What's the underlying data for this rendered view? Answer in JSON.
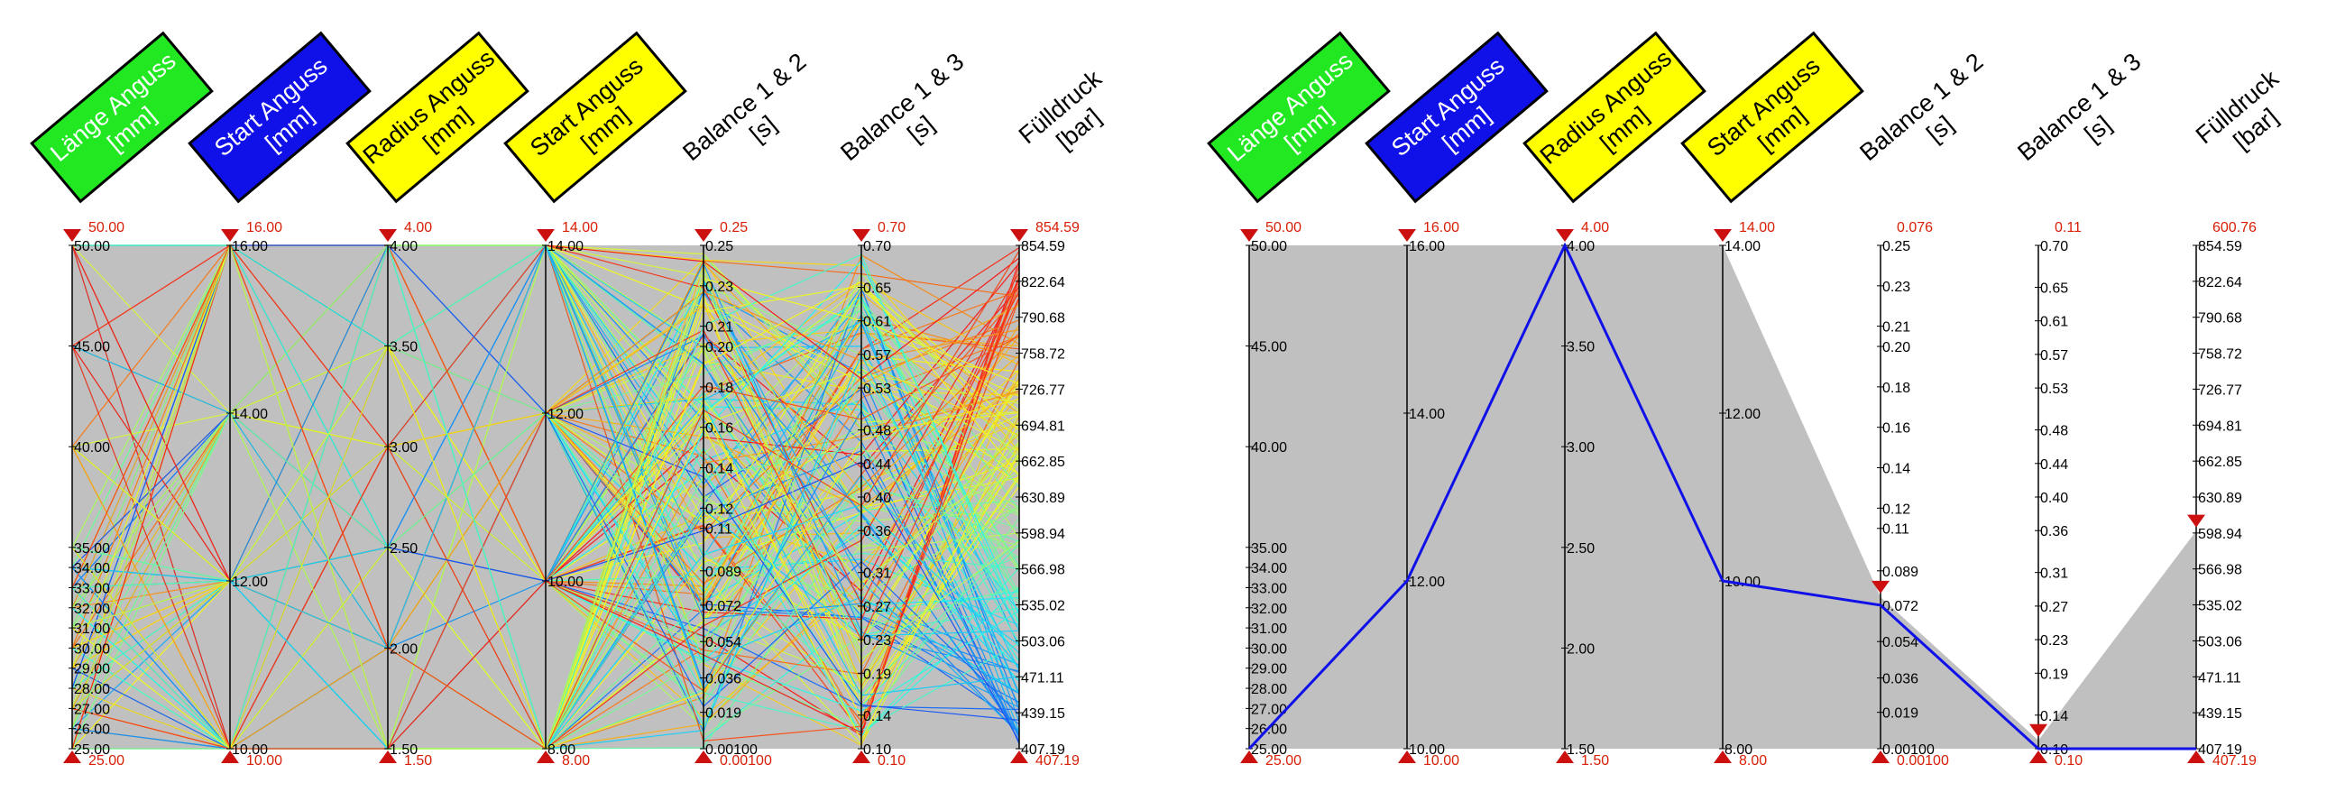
{
  "chart_data": [
    {
      "type": "parallel-coordinates",
      "title": "",
      "axes": [
        {
          "label": [
            "Länge Anguss",
            "[mm]"
          ],
          "box_color": "#22e822",
          "text_color": "#ffffff",
          "max_label": "50.00",
          "min_label": "25.00",
          "min": 25,
          "max": 50,
          "ticks": [
            "25.00",
            "26.00",
            "27.00",
            "28.00",
            "29.00",
            "30.00",
            "31.00",
            "32.00",
            "33.00",
            "34.00",
            "35.00",
            "40.00",
            "45.00",
            "50.00"
          ]
        },
        {
          "label": [
            "Start Anguss",
            "[mm]"
          ],
          "box_color": "#1010e8",
          "text_color": "#ffffff",
          "max_label": "16.00",
          "min_label": "10.00",
          "min": 10,
          "max": 16,
          "ticks": [
            "10.00",
            "12.00",
            "14.00",
            "16.00"
          ]
        },
        {
          "label": [
            "Radius Anguss",
            "[mm]"
          ],
          "box_color": "#ffff00",
          "text_color": "#000000",
          "max_label": "4.00",
          "min_label": "1.50",
          "min": 1.5,
          "max": 4,
          "ticks": [
            "1.50",
            "2.00",
            "2.50",
            "3.00",
            "3.50",
            "4.00"
          ]
        },
        {
          "label": [
            "Start Anguss",
            "[mm]"
          ],
          "box_color": "#ffff00",
          "text_color": "#000000",
          "max_label": "14.00",
          "min_label": "8.00",
          "min": 8,
          "max": 14,
          "ticks": [
            "8.00",
            "10.00",
            "12.00",
            "14.00"
          ]
        },
        {
          "label": [
            "Balance 1 & 2",
            "[s]"
          ],
          "box_color": "",
          "text_color": "#000000",
          "max_label": "0.25",
          "min_label": "0.00100",
          "min": 0.001,
          "max": 0.25,
          "ticks": [
            "0.00100",
            "0.019",
            "0.036",
            "0.054",
            "0.072",
            "0.089",
            "0.11",
            "0.12",
            "0.14",
            "0.16",
            "0.18",
            "0.20",
            "0.21",
            "0.23",
            "0.25"
          ]
        },
        {
          "label": [
            "Balance 1 & 3",
            "[s]"
          ],
          "box_color": "",
          "text_color": "#000000",
          "max_label": "0.70",
          "min_label": "0.10",
          "min": 0.1,
          "max": 0.7,
          "ticks": [
            "0.10",
            "0.14",
            "0.19",
            "0.23",
            "0.27",
            "0.31",
            "0.36",
            "0.40",
            "0.44",
            "0.48",
            "0.53",
            "0.57",
            "0.61",
            "0.65",
            "0.70"
          ]
        },
        {
          "label": [
            "Fülldruck",
            "[bar]"
          ],
          "box_color": "",
          "text_color": "#000000",
          "max_label": "854.59",
          "min_label": "407.19",
          "min": 407.19,
          "max": 854.59,
          "ticks": [
            "407.19",
            "439.15",
            "471.11",
            "503.06",
            "535.02",
            "566.98",
            "598.94",
            "630.89",
            "662.85",
            "694.81",
            "726.77",
            "758.72",
            "790.68",
            "822.64",
            "854.59"
          ]
        }
      ],
      "filter": "none",
      "line_colormap": "jet"
    },
    {
      "type": "parallel-coordinates",
      "title": "",
      "axes": [
        {
          "label": [
            "Länge Anguss",
            "[mm]"
          ],
          "box_color": "#22e822",
          "text_color": "#ffffff",
          "max_label": "50.00",
          "min_label": "25.00",
          "min": 25,
          "max": 50,
          "ticks": [
            "25.00",
            "26.00",
            "27.00",
            "28.00",
            "29.00",
            "30.00",
            "31.00",
            "32.00",
            "33.00",
            "34.00",
            "35.00",
            "40.00",
            "45.00",
            "50.00"
          ]
        },
        {
          "label": [
            "Start Anguss",
            "[mm]"
          ],
          "box_color": "#1010e8",
          "text_color": "#ffffff",
          "max_label": "16.00",
          "min_label": "10.00",
          "min": 10,
          "max": 16,
          "ticks": [
            "10.00",
            "12.00",
            "14.00",
            "16.00"
          ]
        },
        {
          "label": [
            "Radius Anguss",
            "[mm]"
          ],
          "box_color": "#ffff00",
          "text_color": "#000000",
          "max_label": "4.00",
          "min_label": "1.50",
          "min": 1.5,
          "max": 4,
          "ticks": [
            "1.50",
            "2.00",
            "2.50",
            "3.00",
            "3.50",
            "4.00"
          ]
        },
        {
          "label": [
            "Start Anguss",
            "[mm]"
          ],
          "box_color": "#ffff00",
          "text_color": "#000000",
          "max_label": "14.00",
          "min_label": "8.00",
          "min": 8,
          "max": 14,
          "ticks": [
            "8.00",
            "10.00",
            "12.00",
            "14.00"
          ]
        },
        {
          "label": [
            "Balance 1 & 2",
            "[s]"
          ],
          "box_color": "",
          "text_color": "#000000",
          "max_label": "0.076",
          "min_label": "0.00100",
          "min": 0.001,
          "max": 0.25,
          "ticks": [
            "0.00100",
            "0.019",
            "0.036",
            "0.054",
            "0.072",
            "0.089",
            "0.11",
            "0.12",
            "0.14",
            "0.16",
            "0.18",
            "0.20",
            "0.21",
            "0.23",
            "0.25"
          ]
        },
        {
          "label": [
            "Balance 1 & 3",
            "[s]"
          ],
          "box_color": "",
          "text_color": "#000000",
          "max_label": "0.11",
          "min_label": "0.10",
          "min": 0.1,
          "max": 0.7,
          "ticks": [
            "0.10",
            "0.14",
            "0.19",
            "0.23",
            "0.27",
            "0.31",
            "0.36",
            "0.40",
            "0.44",
            "0.48",
            "0.53",
            "0.57",
            "0.61",
            "0.65",
            "0.70"
          ]
        },
        {
          "label": [
            "Fülldruck",
            "[bar]"
          ],
          "box_color": "",
          "text_color": "#000000",
          "max_label": "600.76",
          "min_label": "407.19",
          "min": 407.19,
          "max": 854.59,
          "ticks": [
            "407.19",
            "439.15",
            "471.11",
            "503.06",
            "535.02",
            "566.98",
            "598.94",
            "630.89",
            "662.85",
            "694.81",
            "726.77",
            "758.72",
            "790.68",
            "822.64",
            "854.59"
          ]
        }
      ],
      "filter": {
        "upper": [
          50,
          16,
          4,
          14,
          0.076,
          0.11,
          600.76
        ],
        "lower": [
          25,
          10,
          1.5,
          8,
          0.001,
          0.1,
          407.19
        ]
      },
      "highlight": {
        "values": [
          25,
          12,
          4,
          10,
          0.072,
          0.1,
          407.19
        ],
        "color": "#1010e8"
      }
    }
  ],
  "colors": {
    "panel": "#c0c0c0",
    "axis": "#000000",
    "range_label": "#d81e05",
    "marker": "#cc1010"
  }
}
